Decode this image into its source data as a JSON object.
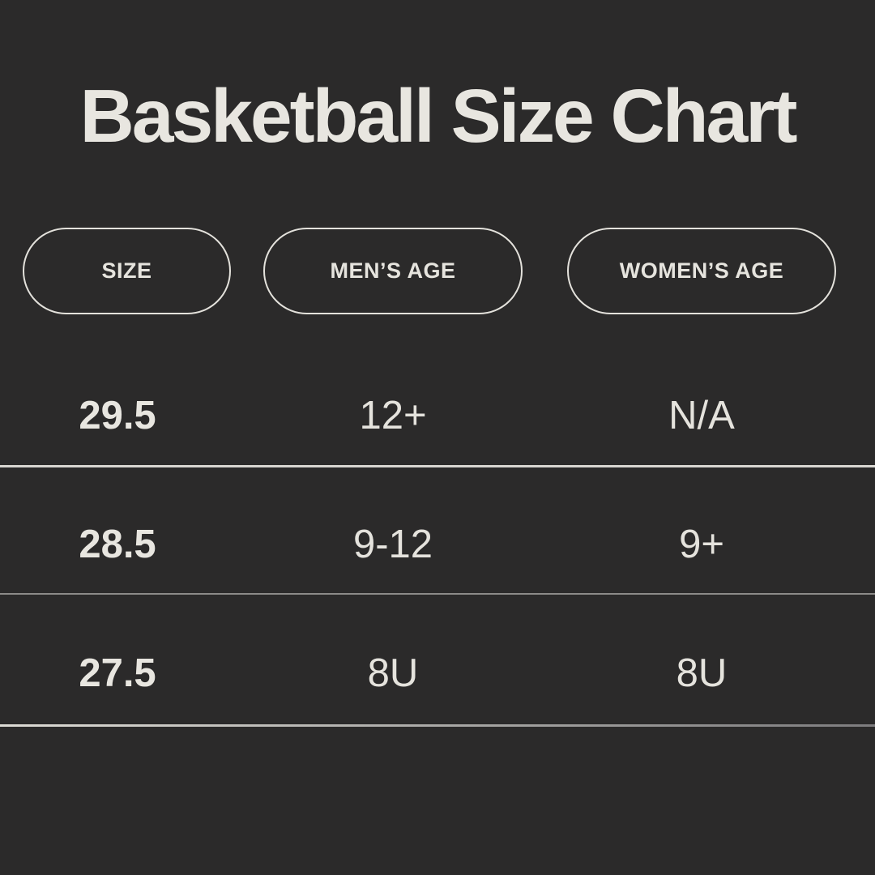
{
  "title": "Basketball Size Chart",
  "chart_data": {
    "type": "table",
    "title": "Basketball Size Chart",
    "columns": [
      "SIZE",
      "MEN’S AGE",
      "WOMEN’S AGE"
    ],
    "rows": [
      [
        "29.5",
        "12+",
        "N/A"
      ],
      [
        "28.5",
        "9-12",
        "9+"
      ],
      [
        "27.5",
        "8U",
        "8U"
      ]
    ]
  },
  "colors": {
    "background": "#2b2a2a",
    "text": "#e8e6e0",
    "pill_border": "#e4e2dc",
    "divider_bright": "#d8d6d1",
    "divider_dim": "#8c8b89"
  }
}
